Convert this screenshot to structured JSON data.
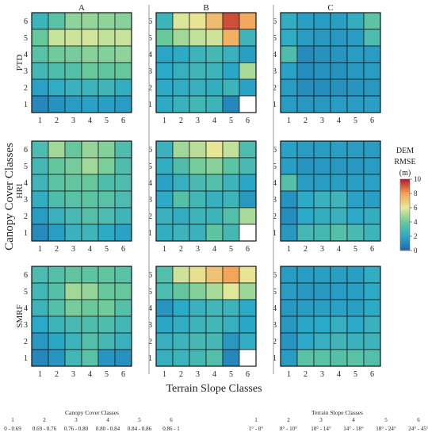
{
  "chart_data": {
    "type": "heatmap",
    "columns": [
      "A",
      "B",
      "C"
    ],
    "rows": [
      "PTD",
      "HRI",
      "SMRF"
    ],
    "x_ticks": [
      "1",
      "2",
      "3",
      "4",
      "5",
      "6"
    ],
    "y_ticks": [
      "1",
      "2",
      "3",
      "4",
      "5",
      "6"
    ],
    "ylabel": "Canopy Cover Classes",
    "xlabel": "Terrain Slope Classes",
    "colorbar": {
      "title_lines": [
        "DEM",
        "RMSE",
        "(m)"
      ],
      "ticks": [
        "0",
        "2",
        "4",
        "6",
        "8",
        "10"
      ],
      "min": 0,
      "max": 10
    },
    "colormap_stops": [
      {
        "v": 0,
        "c": "#2166ac"
      },
      {
        "v": 2,
        "c": "#2aa9c8"
      },
      {
        "v": 4,
        "c": "#69c99a"
      },
      {
        "v": 6,
        "c": "#e6ea9a"
      },
      {
        "v": 8,
        "c": "#f4a256"
      },
      {
        "v": 10,
        "c": "#b2182b"
      }
    ],
    "note": "grid values: rows listed from canopy class 6 (top) to 1 (bottom), columns slope class 1..6; null = empty cell",
    "panels": [
      [
        [
          [
            2.6,
            3.5,
            4.6,
            4.7,
            4.6,
            4.5
          ],
          [
            3.9,
            5.5,
            5.6,
            5.7,
            5.4,
            5.5
          ],
          [
            3.5,
            4.1,
            4.2,
            4.5,
            4.4,
            4.6
          ],
          [
            2.8,
            3.2,
            3.4,
            4.0,
            3.7,
            3.9
          ],
          [
            1.8,
            2.2,
            2.5,
            2.6,
            2.7,
            2.3
          ],
          [
            1.0,
            1.3,
            1.6,
            1.8,
            1.7,
            1.6
          ]
        ],
        [
          [
            3.1,
            4.9,
            3.9,
            4.7,
            4.4,
            3.2
          ],
          [
            2.9,
            3.8,
            4.2,
            4.9,
            4.3,
            3.2
          ],
          [
            2.7,
            3.6,
            3.8,
            3.9,
            3.2,
            3.2
          ],
          [
            2.3,
            3.2,
            3.5,
            3.6,
            3.5,
            3.1
          ],
          [
            1.6,
            2.5,
            3.0,
            3.4,
            3.1,
            2.7
          ],
          [
            1.1,
            1.7,
            2.5,
            2.7,
            2.1,
            1.8
          ]
        ],
        [
          [
            3.1,
            3.4,
            3.7,
            3.6,
            3.7,
            3.5
          ],
          [
            2.8,
            3.4,
            4.9,
            4.7,
            3.9,
            3.9
          ],
          [
            2.6,
            3.4,
            4.2,
            4.0,
            4.1,
            3.4
          ],
          [
            2.0,
            2.6,
            3.0,
            3.2,
            3.2,
            2.8
          ],
          [
            1.5,
            1.9,
            2.6,
            3.3,
            2.9,
            2.5
          ],
          [
            1.0,
            1.4,
            2.8,
            3.5,
            1.4,
            1.3
          ]
        ]
      ],
      [
        [
          [
            2.6,
            5.8,
            6.2,
            7.3,
            9.2,
            7.8
          ],
          [
            4.0,
            4.9,
            5.4,
            5.6,
            7.6,
            2.7
          ],
          [
            1.9,
            2.1,
            2.6,
            2.9,
            2.5,
            1.7
          ],
          [
            2.0,
            2.4,
            2.7,
            2.6,
            1.9,
            5.0
          ],
          [
            2.1,
            2.2,
            2.4,
            2.3,
            2.6,
            1.8
          ],
          [
            2.1,
            2.5,
            2.8,
            2.6,
            1.0,
            null
          ]
        ],
        [
          [
            2.5,
            4.9,
            5.3,
            6.1,
            5.4,
            3.1
          ],
          [
            2.3,
            3.2,
            4.2,
            4.5,
            3.6,
            3.0
          ],
          [
            1.8,
            2.4,
            3.0,
            3.3,
            2.6,
            1.9
          ],
          [
            2.1,
            3.4,
            2.8,
            2.4,
            2.6,
            1.5
          ],
          [
            2.5,
            2.3,
            2.6,
            2.6,
            3.3,
            5.0
          ],
          [
            2.3,
            2.6,
            2.5,
            3.6,
            2.9,
            null
          ]
        ],
        [
          [
            3.3,
            5.6,
            6.3,
            7.1,
            7.9,
            6.2
          ],
          [
            3.1,
            3.8,
            4.4,
            5.0,
            5.9,
            4.8
          ],
          [
            1.4,
            2.0,
            2.5,
            2.8,
            2.6,
            2.0
          ],
          [
            1.9,
            2.3,
            2.6,
            2.8,
            2.4,
            1.9
          ],
          [
            2.4,
            2.6,
            2.9,
            2.9,
            1.5,
            2.2
          ],
          [
            2.4,
            2.6,
            2.9,
            3.3,
            1.0,
            null
          ]
        ]
      ],
      [
        [
          [
            2.3,
            1.7,
            1.6,
            1.7,
            2.3,
            3.6
          ],
          [
            2.2,
            1.6,
            1.5,
            1.5,
            1.6,
            3.1
          ],
          [
            3.2,
            1.1,
            1.3,
            1.4,
            1.6,
            1.6
          ],
          [
            1.8,
            1.2,
            1.3,
            1.3,
            1.5,
            1.6
          ],
          [
            1.6,
            1.2,
            1.2,
            1.3,
            1.4,
            1.5
          ],
          [
            1.6,
            1.5,
            1.5,
            1.6,
            1.6,
            1.7
          ]
        ],
        [
          [
            1.8,
            1.6,
            1.6,
            1.7,
            1.6,
            1.6
          ],
          [
            1.7,
            1.4,
            1.5,
            1.5,
            1.5,
            1.6
          ],
          [
            3.4,
            1.6,
            1.6,
            1.7,
            1.7,
            1.8
          ],
          [
            1.3,
            2.1,
            2.5,
            2.7,
            1.8,
            1.7
          ],
          [
            1.2,
            2.0,
            2.3,
            2.5,
            2.0,
            2.3
          ],
          [
            1.5,
            2.9,
            2.9,
            3.4,
            3.0,
            2.6
          ]
        ],
        [
          [
            1.6,
            1.6,
            1.7,
            1.7,
            1.7,
            2.2
          ],
          [
            1.6,
            1.5,
            1.5,
            1.6,
            1.7,
            2.1
          ],
          [
            1.5,
            1.6,
            1.7,
            1.8,
            1.7,
            2.1
          ],
          [
            1.5,
            1.9,
            2.0,
            2.4,
            2.0,
            2.5
          ],
          [
            1.4,
            2.0,
            2.4,
            2.7,
            2.5,
            2.6
          ],
          [
            1.6,
            3.5,
            3.5,
            3.4,
            3.5,
            3.3
          ]
        ]
      ]
    ],
    "canopy_legend": {
      "title": "Canopy Cover Classes",
      "classes": [
        "1",
        "2",
        "3",
        "4",
        "5",
        "6"
      ],
      "ranges": [
        "0 - 0.69",
        "0.69 - 0.76",
        "0.76 - 0.80",
        "0.80 - 0.84",
        "0.84 - 0.86",
        "0.86 - 1"
      ]
    },
    "slope_legend": {
      "title": "Terrain Slope Classes",
      "classes": [
        "1",
        "2",
        "3",
        "4",
        "5",
        "6"
      ],
      "ranges": [
        "1° - 8°",
        "8° - 10°",
        "10° - 14°",
        "14° - 18°",
        "18° - 24°",
        "24° - 45°"
      ]
    }
  }
}
